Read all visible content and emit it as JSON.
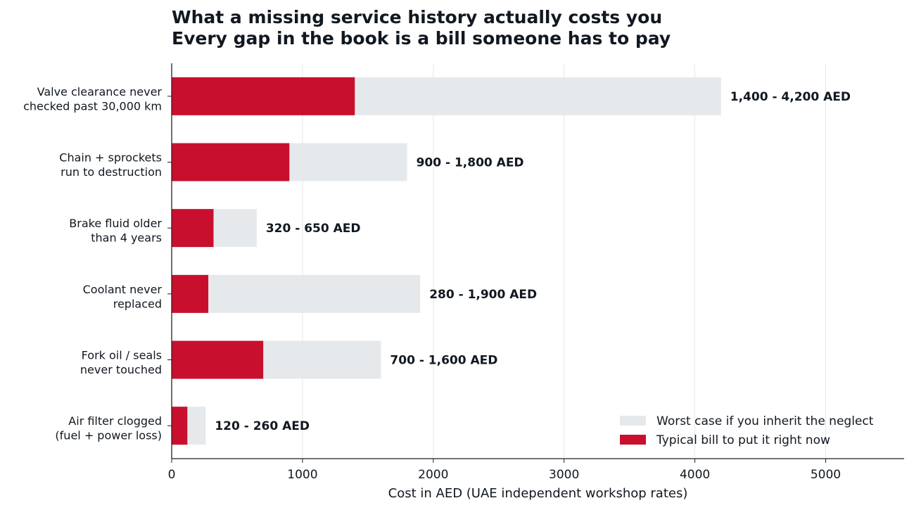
{
  "chart_data": {
    "type": "bar",
    "orientation": "horizontal",
    "title": "What a missing service history actually costs you",
    "subtitle": "Every gap in the book is a bill someone has to pay",
    "xlabel": "Cost in AED (UAE independent workshop rates)",
    "ylabel": "",
    "xlim": [
      0,
      5600
    ],
    "xticks": [
      0,
      1000,
      2000,
      3000,
      4000,
      5000
    ],
    "grid": "vertical",
    "legend_position": "bottom-right",
    "categories": [
      [
        "Valve clearance never",
        "checked past 30,000 km"
      ],
      [
        "Chain + sprockets",
        "run to destruction"
      ],
      [
        "Brake fluid older",
        "than 4 years"
      ],
      [
        "Coolant never",
        "replaced"
      ],
      [
        "Fork oil / seals",
        "never touched"
      ],
      [
        "Air filter clogged",
        "(fuel + power loss)"
      ]
    ],
    "series": [
      {
        "name": "Worst case if you inherit the neglect",
        "color": "#e6e9ec",
        "values": [
          4200,
          1800,
          650,
          1900,
          1600,
          260
        ]
      },
      {
        "name": "Typical bill to put it right now",
        "color": "#c8102e",
        "values": [
          1400,
          900,
          320,
          280,
          700,
          120
        ]
      }
    ],
    "data_labels": [
      "1,400 - 4,200 AED",
      "900 - 1,800 AED",
      "320 - 650 AED",
      "280 - 1,900 AED",
      "700 - 1,600 AED",
      "120 - 260 AED"
    ]
  }
}
